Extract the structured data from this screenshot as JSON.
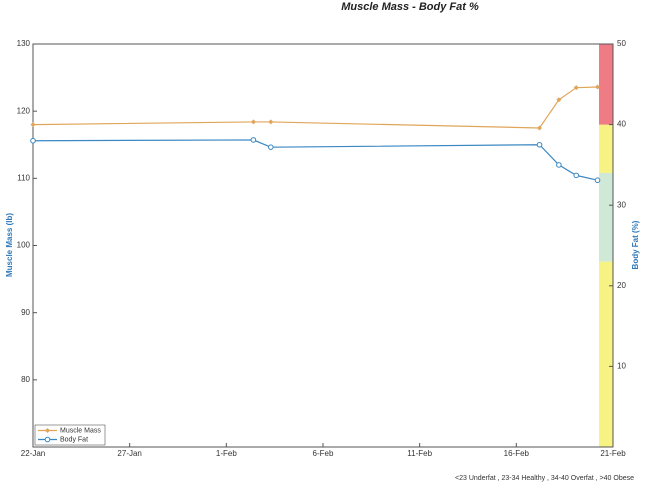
{
  "chart_data": {
    "type": "line",
    "title": "Muscle Mass - Body Fat %",
    "y_label": "Muscle Mass (lb)",
    "y2_label": "Body Fat (%)",
    "note": "<23 Underfat , 23-34 Healthy , 34-40 Overfat , >40 Obese",
    "x": [
      0,
      11.4,
      12.3,
      26.2,
      27.2,
      28.1,
      29.2
    ],
    "xlim": [
      0,
      30
    ],
    "xticks": [
      {
        "value": 0,
        "label": "22-Jan"
      },
      {
        "value": 5,
        "label": "27-Jan"
      },
      {
        "value": 10,
        "label": "1-Feb"
      },
      {
        "value": 15,
        "label": "6-Feb"
      },
      {
        "value": 20,
        "label": "11-Feb"
      },
      {
        "value": 25,
        "label": "16-Feb"
      },
      {
        "value": 30,
        "label": "21-Feb"
      }
    ],
    "ylim": [
      70,
      130
    ],
    "yticks": [
      80,
      90,
      100,
      110,
      120,
      130
    ],
    "y2lim": [
      0,
      50
    ],
    "y2ticks": [
      10,
      20,
      30,
      40,
      50
    ],
    "legend": "lower left",
    "bands": [
      {
        "from": 0,
        "to": 23,
        "color": "#f6f383"
      },
      {
        "from": 23,
        "to": 34,
        "color": "#cfe9d6"
      },
      {
        "from": 34,
        "to": 40,
        "color": "#f6f383"
      },
      {
        "from": 40,
        "to": 50,
        "color": "#ef7b84"
      }
    ],
    "series": [
      {
        "name": "Muscle Mass",
        "color": "#e0a55a",
        "marker": "diamond",
        "values": [
          118.0,
          118.4,
          118.4,
          117.5,
          121.7,
          123.5,
          123.6
        ]
      },
      {
        "name": "Body Fat",
        "color": "#3b87c2",
        "marker": "circle",
        "axis": "y2",
        "values": [
          38.0,
          38.1,
          37.2,
          37.5,
          35.0,
          33.7,
          33.1
        ]
      }
    ]
  }
}
